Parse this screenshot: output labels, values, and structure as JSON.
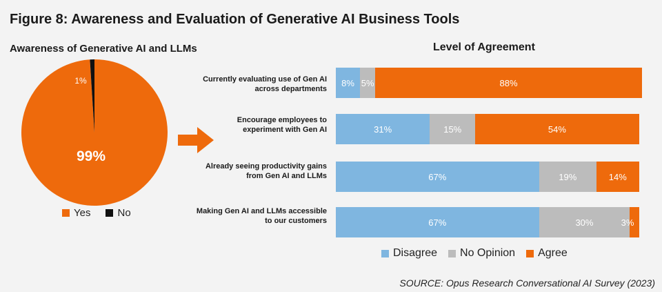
{
  "figure_title": "Figure 8: Awareness and Evaluation of Generative AI Business Tools",
  "source": "SOURCE: Opus Research Conversational AI Survey (2023)",
  "colors": {
    "agree": "#ee6a0c",
    "disagree": "#7fb6e0",
    "no_opinion": "#bcbcbc",
    "no": "#111111"
  },
  "chart_data": [
    {
      "type": "pie",
      "title": "Awareness of Generative AI and LLMs",
      "slices": [
        {
          "label": "Yes",
          "value": 99,
          "text": "99%",
          "color": "#ee6a0c"
        },
        {
          "label": "No",
          "value": 1,
          "text": "1%",
          "color": "#111111"
        }
      ],
      "legend": [
        "Yes",
        "No"
      ],
      "legend_position": "bottom"
    },
    {
      "type": "bar",
      "orientation": "horizontal",
      "stacked": true,
      "title": "Level of Agreement",
      "categories": [
        "Currently evaluating use of Gen AI across departments",
        "Encourage employees to experiment with Gen AI",
        "Already seeing productivity gains from Gen AI and LLMs",
        "Making Gen AI and LLMs accessible to our customers"
      ],
      "series": [
        {
          "name": "Disagree",
          "color": "#7fb6e0",
          "values": [
            8,
            31,
            67,
            67
          ]
        },
        {
          "name": "No Opinion",
          "color": "#bcbcbc",
          "values": [
            5,
            15,
            19,
            30
          ]
        },
        {
          "name": "Agree",
          "color": "#ee6a0c",
          "values": [
            88,
            54,
            14,
            3
          ]
        }
      ],
      "xlim": [
        0,
        101
      ],
      "legend": [
        "Disagree",
        "No Opinion",
        "Agree"
      ],
      "legend_position": "bottom"
    }
  ]
}
